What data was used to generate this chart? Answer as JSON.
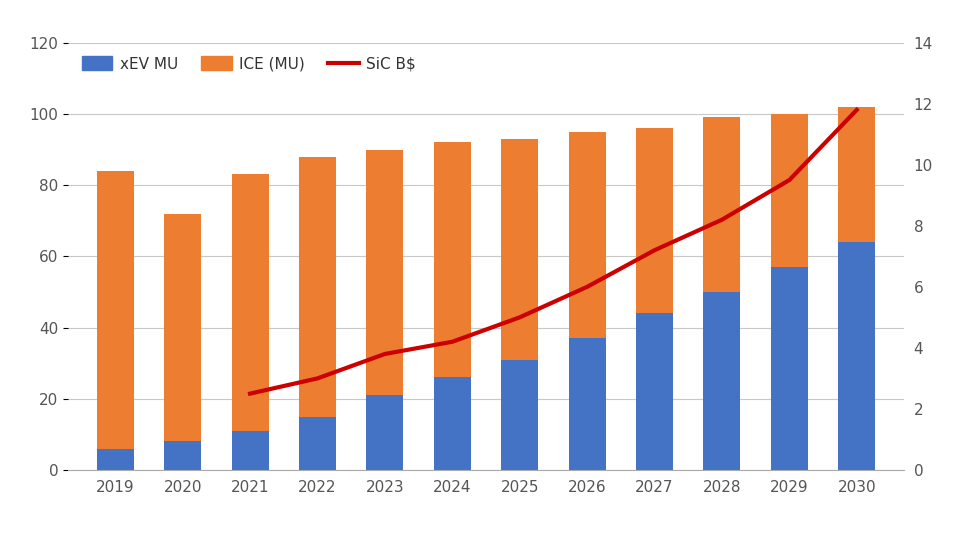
{
  "years": [
    2019,
    2020,
    2021,
    2022,
    2023,
    2024,
    2025,
    2026,
    2027,
    2028,
    2029,
    2030
  ],
  "xEV_MU": [
    6,
    8,
    11,
    15,
    21,
    26,
    31,
    37,
    44,
    50,
    57,
    64
  ],
  "ICE_MU": [
    78,
    64,
    72,
    73,
    69,
    66,
    62,
    58,
    52,
    49,
    43,
    38
  ],
  "SiC_BS": [
    null,
    null,
    2.5,
    3.0,
    3.8,
    4.2,
    5.0,
    6.0,
    7.2,
    8.2,
    9.5,
    11.8
  ],
  "xev_color": "#4472C4",
  "ice_color": "#ED7D31",
  "sic_color": "#CC0000",
  "ylim_left": [
    0,
    120
  ],
  "ylim_right": [
    0,
    14
  ],
  "yticks_left": [
    0,
    20,
    40,
    60,
    80,
    100,
    120
  ],
  "yticks_right": [
    0,
    2,
    4,
    6,
    8,
    10,
    12,
    14
  ],
  "legend_labels": [
    "xEV MU",
    "ICE (MU)",
    "SiC B$"
  ],
  "background_color": "#FFFFFF",
  "figsize": [
    9.72,
    5.34
  ],
  "bar_width": 0.55
}
